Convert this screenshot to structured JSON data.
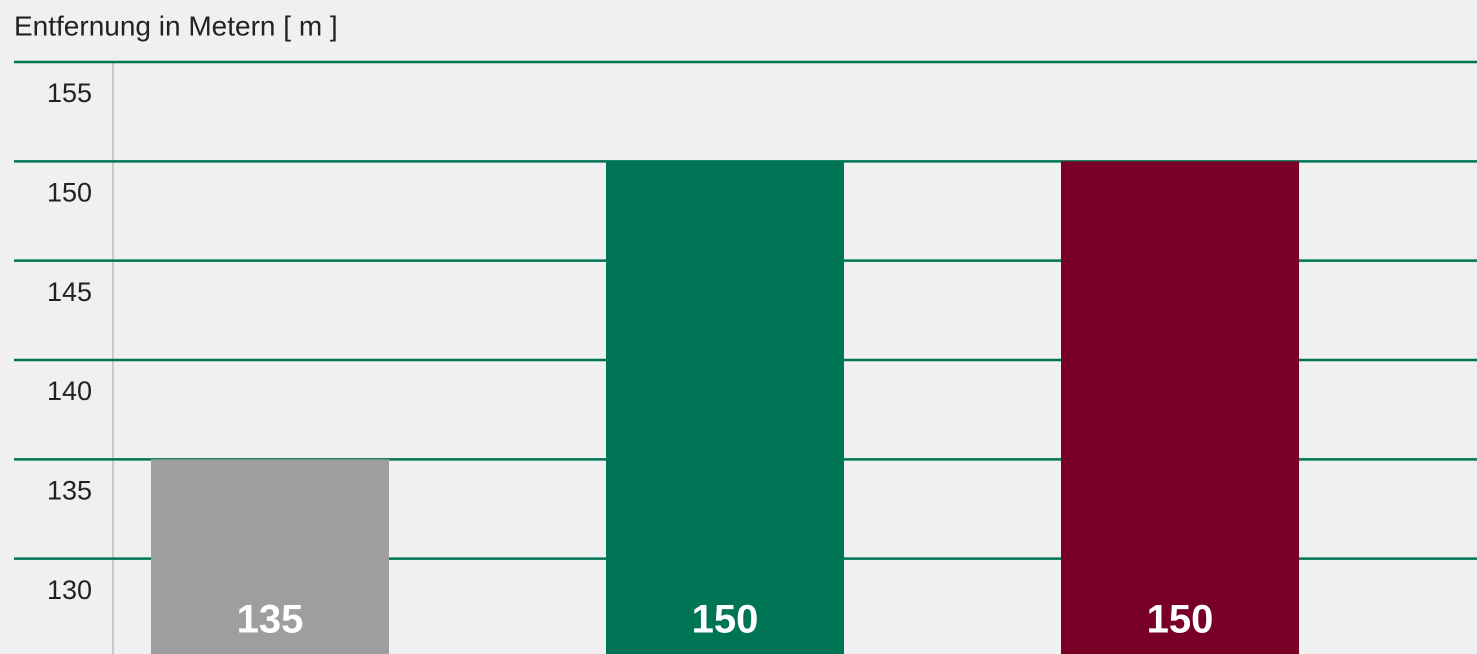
{
  "chart_data": {
    "type": "bar",
    "title": "Entfernung in Metern [ m ]",
    "categories": [
      null,
      null,
      null
    ],
    "values": [
      135,
      150,
      150
    ],
    "colors": [
      "#9d9e9e",
      "#007556",
      "#780026"
    ],
    "ylim": [
      125.2,
      155
    ],
    "yticks": [
      130,
      135,
      140,
      145,
      150,
      155
    ],
    "grid": true
  }
}
